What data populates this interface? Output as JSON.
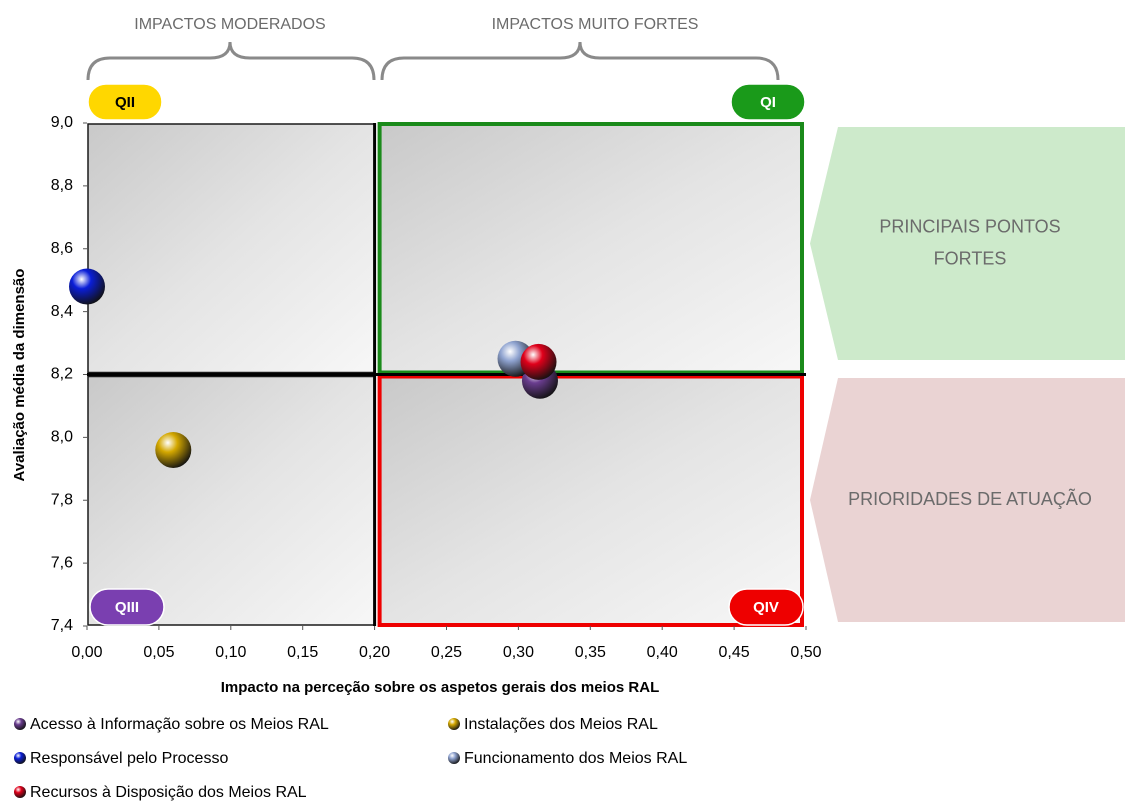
{
  "chart_data": {
    "type": "scatter",
    "x_label": "Impacto na perceção sobre os aspetos gerais dos meios RAL",
    "y_label": "Avaliação média da dimensão",
    "xlim": [
      0,
      0.5
    ],
    "ylim": [
      7.4,
      9.0
    ],
    "xticks": [
      {
        "value": 0,
        "label": "0,00"
      },
      {
        "value": 0.05,
        "label": "0,05"
      },
      {
        "value": 0.1,
        "label": "0,10"
      },
      {
        "value": 0.15,
        "label": "0,15"
      },
      {
        "value": 0.2,
        "label": "0,20"
      },
      {
        "value": 0.25,
        "label": "0,25"
      },
      {
        "value": 0.3,
        "label": "0,30"
      },
      {
        "value": 0.35,
        "label": "0,35"
      },
      {
        "value": 0.4,
        "label": "0,40"
      },
      {
        "value": 0.45,
        "label": "0,45"
      },
      {
        "value": 0.5,
        "label": "0,50"
      }
    ],
    "yticks": [
      {
        "value": 7.4,
        "label": "7,4"
      },
      {
        "value": 7.6,
        "label": "7,6"
      },
      {
        "value": 7.8,
        "label": "7,8"
      },
      {
        "value": 8.0,
        "label": "8,0"
      },
      {
        "value": 8.2,
        "label": "8,2"
      },
      {
        "value": 8.4,
        "label": "8,4"
      },
      {
        "value": 8.6,
        "label": "8,6"
      },
      {
        "value": 8.8,
        "label": "8,8"
      },
      {
        "value": 9.0,
        "label": "9,0"
      }
    ],
    "grid": false,
    "quadrant_lines": {
      "x": 0.2,
      "y": 8.2
    },
    "quadrants": [
      {
        "label": "QII",
        "color": "#ffd700",
        "border": "#1a1a1a"
      },
      {
        "label": "QI",
        "color": "#1a9a1a",
        "border": "#1a8a1a"
      },
      {
        "label": "QIII",
        "color": "#7a3fb0",
        "border": "#1a1a1a"
      },
      {
        "label": "QIV",
        "color": "#ee0000",
        "border": "#ee0000"
      }
    ],
    "top_labels": [
      "IMPACTOS MODERADOS",
      "IMPACTOS MUITO FORTES"
    ],
    "side_labels": [
      {
        "text": [
          "PRINCIPAIS PONTOS",
          "FORTES"
        ],
        "color": "#cdeacb"
      },
      {
        "text": [
          "PRIORIDADES DE ATUAÇÃO"
        ],
        "color": "#ead3d3"
      }
    ],
    "series": [
      {
        "name": "Acesso à Informação sobre os Meios RAL",
        "color": "#6a3d8f",
        "x": [
          0.315
        ],
        "values": [
          8.18
        ]
      },
      {
        "name": "Instalações dos Meios RAL",
        "color": "#d4a800",
        "x": [
          0.06
        ],
        "values": [
          7.96
        ]
      },
      {
        "name": "Responsável pelo Processo",
        "color": "#0a1ed8",
        "x": [
          0.0
        ],
        "values": [
          8.48
        ]
      },
      {
        "name": "Funcionamento dos Meios RAL",
        "color": "#8fa3d0",
        "x": [
          0.298
        ],
        "values": [
          8.25
        ]
      },
      {
        "name": "Recursos à Disposição dos Meios RAL",
        "color": "#e0001a",
        "x": [
          0.314
        ],
        "values": [
          8.24
        ]
      }
    ]
  }
}
